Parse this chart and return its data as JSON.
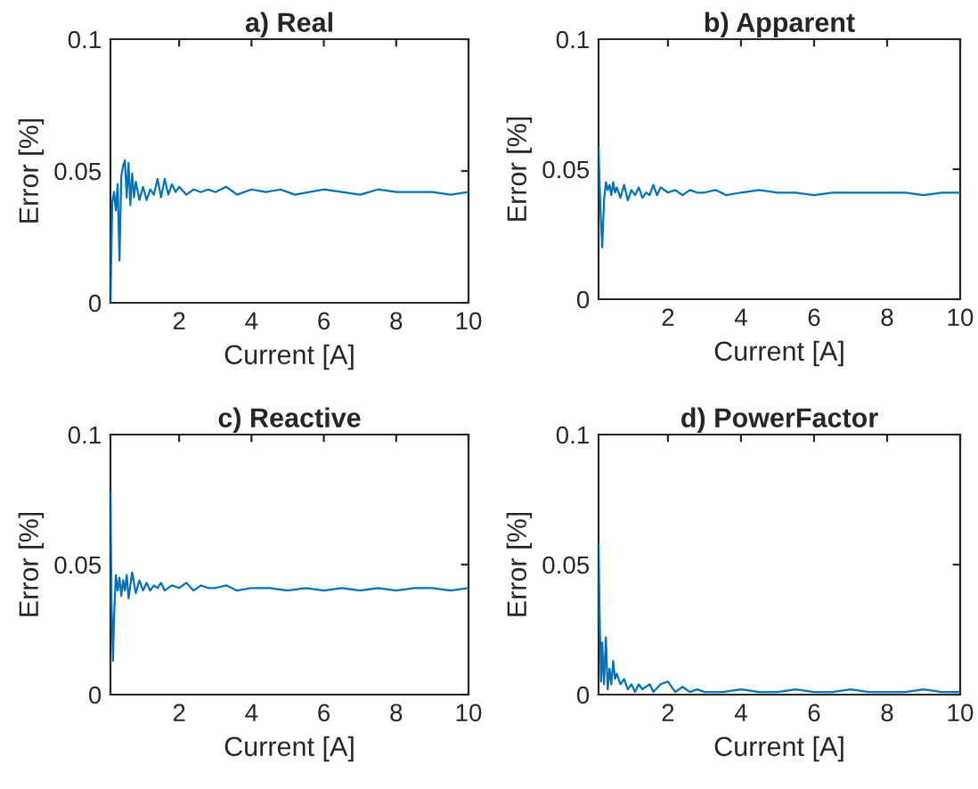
{
  "chart_data": [
    {
      "type": "line",
      "title": "a) Real",
      "xlabel": "Current [A]",
      "ylabel": "Error [%]",
      "xlim": [
        0.1,
        10
      ],
      "ylim": [
        0,
        0.1
      ],
      "xticks": [
        2,
        4,
        6,
        8,
        10
      ],
      "yticks": [
        0,
        0.05,
        0.1
      ],
      "grid": false,
      "series": [
        {
          "color": "#0072bd",
          "x": [
            0.1,
            0.15,
            0.2,
            0.25,
            0.3,
            0.35,
            0.4,
            0.45,
            0.5,
            0.55,
            0.6,
            0.65,
            0.7,
            0.75,
            0.8,
            0.9,
            1.0,
            1.1,
            1.2,
            1.3,
            1.4,
            1.5,
            1.6,
            1.7,
            1.8,
            1.9,
            2.0,
            2.2,
            2.4,
            2.6,
            2.8,
            3.0,
            3.3,
            3.6,
            4.0,
            4.4,
            4.8,
            5.2,
            5.6,
            6.0,
            6.5,
            7.0,
            7.5,
            8.0,
            8.5,
            9.0,
            9.5,
            10
          ],
          "values": [
            0.0,
            0.038,
            0.042,
            0.035,
            0.045,
            0.016,
            0.048,
            0.052,
            0.054,
            0.04,
            0.053,
            0.037,
            0.049,
            0.04,
            0.046,
            0.039,
            0.044,
            0.039,
            0.043,
            0.041,
            0.047,
            0.04,
            0.047,
            0.041,
            0.045,
            0.042,
            0.044,
            0.041,
            0.043,
            0.042,
            0.043,
            0.042,
            0.044,
            0.041,
            0.043,
            0.042,
            0.043,
            0.041,
            0.042,
            0.043,
            0.042,
            0.041,
            0.043,
            0.042,
            0.042,
            0.042,
            0.041,
            0.042
          ]
        }
      ]
    },
    {
      "type": "line",
      "title": "b) Apparent",
      "xlabel": "Current [A]",
      "ylabel": "Error [%]",
      "xlim": [
        0.1,
        10
      ],
      "ylim": [
        0,
        0.1
      ],
      "xticks": [
        2,
        4,
        6,
        8,
        10
      ],
      "yticks": [
        0,
        0.05,
        0.1
      ],
      "grid": false,
      "series": [
        {
          "color": "#0072bd",
          "x": [
            0.1,
            0.15,
            0.2,
            0.25,
            0.3,
            0.35,
            0.4,
            0.45,
            0.5,
            0.55,
            0.6,
            0.7,
            0.8,
            0.9,
            1.0,
            1.1,
            1.2,
            1.3,
            1.4,
            1.5,
            1.6,
            1.7,
            1.8,
            2.0,
            2.2,
            2.4,
            2.6,
            2.8,
            3.0,
            3.3,
            3.6,
            4.0,
            4.5,
            5.0,
            5.5,
            6.0,
            6.5,
            7.0,
            7.5,
            8.0,
            8.5,
            9.0,
            9.5,
            10
          ],
          "values": [
            0.058,
            0.035,
            0.02,
            0.038,
            0.045,
            0.042,
            0.044,
            0.04,
            0.045,
            0.041,
            0.043,
            0.039,
            0.044,
            0.038,
            0.042,
            0.04,
            0.043,
            0.039,
            0.041,
            0.04,
            0.044,
            0.04,
            0.043,
            0.041,
            0.042,
            0.04,
            0.042,
            0.041,
            0.041,
            0.042,
            0.04,
            0.041,
            0.042,
            0.041,
            0.041,
            0.04,
            0.041,
            0.041,
            0.041,
            0.041,
            0.041,
            0.04,
            0.041,
            0.041
          ]
        }
      ]
    },
    {
      "type": "line",
      "title": "c) Reactive",
      "xlabel": "Current [A]",
      "ylabel": "Error [%]",
      "xlim": [
        0.1,
        10
      ],
      "ylim": [
        0,
        0.1
      ],
      "xticks": [
        2,
        4,
        6,
        8,
        10
      ],
      "yticks": [
        0,
        0.05,
        0.1
      ],
      "grid": false,
      "series": [
        {
          "color": "#0072bd",
          "x": [
            0.1,
            0.13,
            0.17,
            0.2,
            0.25,
            0.3,
            0.35,
            0.4,
            0.45,
            0.5,
            0.55,
            0.6,
            0.7,
            0.8,
            0.9,
            1.0,
            1.1,
            1.2,
            1.3,
            1.4,
            1.5,
            1.6,
            1.8,
            2.0,
            2.2,
            2.4,
            2.6,
            2.8,
            3.0,
            3.3,
            3.6,
            4.0,
            4.5,
            5.0,
            5.5,
            6.0,
            6.5,
            7.0,
            7.5,
            8.0,
            8.5,
            9.0,
            9.5,
            10
          ],
          "values": [
            0.078,
            0.035,
            0.013,
            0.03,
            0.046,
            0.04,
            0.045,
            0.038,
            0.044,
            0.04,
            0.046,
            0.037,
            0.047,
            0.039,
            0.044,
            0.04,
            0.043,
            0.04,
            0.042,
            0.041,
            0.043,
            0.04,
            0.042,
            0.041,
            0.043,
            0.04,
            0.042,
            0.041,
            0.041,
            0.042,
            0.04,
            0.041,
            0.041,
            0.04,
            0.041,
            0.04,
            0.041,
            0.04,
            0.041,
            0.04,
            0.041,
            0.041,
            0.04,
            0.041
          ]
        }
      ]
    },
    {
      "type": "line",
      "title": "d) PowerFactor",
      "xlabel": "Current [A]",
      "ylabel": "Error [%]",
      "xlim": [
        0.1,
        10
      ],
      "ylim": [
        0,
        0.1
      ],
      "xticks": [
        2,
        4,
        6,
        8,
        10
      ],
      "yticks": [
        0,
        0.05,
        0.1
      ],
      "grid": false,
      "series": [
        {
          "color": "#0072bd",
          "x": [
            0.1,
            0.13,
            0.17,
            0.2,
            0.25,
            0.3,
            0.35,
            0.4,
            0.45,
            0.5,
            0.55,
            0.6,
            0.7,
            0.8,
            0.9,
            1.0,
            1.1,
            1.2,
            1.3,
            1.4,
            1.5,
            1.6,
            1.8,
            2.0,
            2.2,
            2.4,
            2.6,
            2.8,
            3.0,
            3.5,
            4.0,
            4.5,
            5.0,
            5.5,
            6.0,
            6.5,
            7.0,
            7.5,
            8.0,
            8.5,
            9.0,
            9.5,
            10
          ],
          "values": [
            0.058,
            0.03,
            0.005,
            0.02,
            0.004,
            0.022,
            0.002,
            0.01,
            0.004,
            0.013,
            0.006,
            0.008,
            0.004,
            0.006,
            0.002,
            0.004,
            0.001,
            0.004,
            0.002,
            0.003,
            0.004,
            0.001,
            0.004,
            0.005,
            0.001,
            0.003,
            0.001,
            0.002,
            0.001,
            0.001,
            0.002,
            0.001,
            0.001,
            0.002,
            0.001,
            0.001,
            0.002,
            0.001,
            0.001,
            0.001,
            0.002,
            0.001,
            0.001
          ]
        }
      ]
    }
  ]
}
